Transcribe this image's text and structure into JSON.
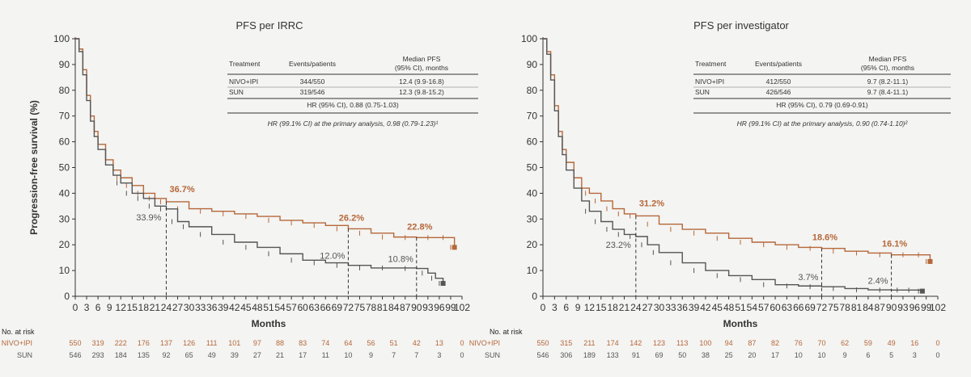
{
  "colors": {
    "nivo": "#b5673a",
    "sun": "#555555",
    "axis": "#333333"
  },
  "chart_data": [
    {
      "type": "line",
      "title": "PFS per IRRC",
      "ylabel": "Progression-free survival (%)",
      "xlabel": "Months",
      "xlim": [
        0,
        102
      ],
      "ylim": [
        0,
        100
      ],
      "xticks": [
        "0",
        "3",
        "6",
        "9",
        "12",
        "15",
        "18",
        "21",
        "24",
        "27",
        "30",
        "33",
        "36",
        "39",
        "42",
        "45",
        "48",
        "51",
        "54",
        "57",
        "60",
        "63",
        "66",
        "69",
        "72",
        "75",
        "78",
        "81",
        "84",
        "87",
        "90",
        "93",
        "96",
        "99",
        "102"
      ],
      "yticks": [
        "0",
        "10",
        "20",
        "30",
        "40",
        "50",
        "60",
        "70",
        "80",
        "90",
        "100"
      ],
      "series": [
        {
          "name": "NIVO+IPI",
          "color": "#b5673a",
          "x": [
            0,
            1,
            2,
            3,
            4,
            5,
            6,
            8,
            10,
            12,
            15,
            18,
            21,
            24,
            30,
            36,
            42,
            48,
            54,
            60,
            66,
            72,
            78,
            84,
            90,
            96,
            98,
            100
          ],
          "y": [
            100,
            96,
            88,
            78,
            70,
            64,
            59,
            53,
            49,
            46,
            43,
            40,
            38,
            36.7,
            34,
            33,
            32,
            31,
            29.5,
            28.5,
            27.5,
            26.2,
            24.5,
            23,
            22.8,
            22.8,
            22.8,
            19
          ]
        },
        {
          "name": "SUN",
          "color": "#555555",
          "x": [
            0,
            1,
            2,
            3,
            4,
            5,
            6,
            8,
            10,
            12,
            15,
            18,
            21,
            24,
            27,
            30,
            36,
            42,
            48,
            54,
            60,
            66,
            72,
            78,
            84,
            90,
            93,
            95,
            97
          ],
          "y": [
            100,
            95,
            86,
            76,
            68,
            62,
            57,
            51,
            47,
            44,
            40,
            38,
            35,
            33.9,
            29,
            27,
            24,
            21,
            19,
            16.5,
            14,
            13,
            12,
            11,
            11,
            10.8,
            9,
            7,
            5
          ]
        }
      ],
      "annotations": [
        {
          "x": 24,
          "label": "36.7%",
          "series": "NIVO+IPI"
        },
        {
          "x": 24,
          "label": "33.9%",
          "series": "SUN"
        },
        {
          "x": 72,
          "label": "26.2%",
          "series": "NIVO+IPI"
        },
        {
          "x": 72,
          "label": "12.0%",
          "series": "SUN"
        },
        {
          "x": 90,
          "label": "22.8%",
          "series": "NIVO+IPI"
        },
        {
          "x": 90,
          "label": "10.8%",
          "series": "SUN"
        }
      ],
      "table": {
        "headers": [
          "Treatment",
          "Events/patients",
          "Median PFS",
          "(95% CI), months"
        ],
        "rows": [
          {
            "treatment": "NIVO+IPI",
            "events": "344/550",
            "median": "12.4 (9.9-16.8)"
          },
          {
            "treatment": "SUN",
            "events": "319/546",
            "median": "12.3 (9.8-15.2)"
          }
        ],
        "hr": "HR (95% CI), 0.88 (0.75-1.03)",
        "note": "HR (99.1% CI) at the primary analysis, 0.98 (0.79-1.23)¹"
      },
      "risk": {
        "label": "No. at risk",
        "rows": [
          {
            "name": "NIVO+IPI",
            "values": [
              "550",
              "319",
              "222",
              "176",
              "137",
              "126",
              "111",
              "101",
              "97",
              "88",
              "83",
              "74",
              "64",
              "56",
              "51",
              "42",
              "13",
              "0"
            ]
          },
          {
            "name": "SUN",
            "values": [
              "546",
              "293",
              "184",
              "135",
              "92",
              "65",
              "49",
              "39",
              "27",
              "21",
              "17",
              "11",
              "10",
              "9",
              "7",
              "7",
              "3",
              "0"
            ]
          }
        ]
      }
    },
    {
      "type": "line",
      "title": "PFS per investigator",
      "ylabel": "",
      "xlabel": "Months",
      "xlim": [
        0,
        102
      ],
      "ylim": [
        0,
        100
      ],
      "xticks": [
        "0",
        "3",
        "6",
        "9",
        "12",
        "15",
        "18",
        "21",
        "24",
        "27",
        "30",
        "33",
        "36",
        "39",
        "42",
        "45",
        "48",
        "51",
        "54",
        "57",
        "60",
        "63",
        "66",
        "69",
        "72",
        "75",
        "78",
        "81",
        "84",
        "87",
        "90",
        "93",
        "96",
        "99",
        "102"
      ],
      "yticks": [
        "0",
        "10",
        "20",
        "30",
        "40",
        "50",
        "60",
        "70",
        "80",
        "90",
        "100"
      ],
      "series": [
        {
          "name": "NIVO+IPI",
          "color": "#b5673a",
          "x": [
            0,
            1,
            2,
            3,
            4,
            5,
            6,
            8,
            10,
            12,
            15,
            18,
            21,
            24,
            30,
            36,
            42,
            48,
            54,
            60,
            66,
            72,
            78,
            84,
            90,
            96,
            98,
            100
          ],
          "y": [
            100,
            95,
            86,
            74,
            64,
            57,
            52,
            46,
            42,
            40,
            37,
            34,
            32,
            31.2,
            28,
            26,
            24.5,
            22.5,
            21,
            20,
            19,
            18.6,
            17.5,
            16.8,
            16.1,
            16.1,
            16.1,
            13.5
          ]
        },
        {
          "name": "SUN",
          "color": "#555555",
          "x": [
            0,
            1,
            2,
            3,
            4,
            5,
            6,
            8,
            10,
            12,
            15,
            18,
            21,
            24,
            27,
            30,
            36,
            42,
            48,
            54,
            60,
            66,
            72,
            78,
            84,
            90,
            93,
            96,
            98
          ],
          "y": [
            100,
            94,
            84,
            72,
            62,
            55,
            49,
            42,
            37,
            33,
            29,
            26,
            24,
            23.2,
            20,
            17,
            13,
            10,
            8,
            6.5,
            4.5,
            4,
            3.7,
            3,
            2.5,
            2.4,
            2.4,
            2.4,
            2
          ]
        }
      ],
      "annotations": [
        {
          "x": 24,
          "label": "31.2%",
          "series": "NIVO+IPI"
        },
        {
          "x": 24,
          "label": "23.2%",
          "series": "SUN"
        },
        {
          "x": 72,
          "label": "18.6%",
          "series": "NIVO+IPI"
        },
        {
          "x": 72,
          "label": "3.7%",
          "series": "SUN"
        },
        {
          "x": 90,
          "label": "16.1%",
          "series": "NIVO+IPI"
        },
        {
          "x": 90,
          "label": "2.4%",
          "series": "SUN"
        }
      ],
      "table": {
        "headers": [
          "Treatment",
          "Events/patients",
          "Median PFS",
          "(95% CI), months"
        ],
        "rows": [
          {
            "treatment": "NIVO+IPI",
            "events": "412/550",
            "median": "9.7 (8.2-11.1)"
          },
          {
            "treatment": "SUN",
            "events": "426/546",
            "median": "9.7 (8.4-11.1)"
          }
        ],
        "hr": "HR (95% CI), 0.79 (0.69-0.91)",
        "note": "HR (99.1% CI) at the primary analysis, 0.90 (0.74-1.10)²"
      },
      "risk": {
        "label": "No. at risk",
        "rows": [
          {
            "name": "NIVO+IPI",
            "values": [
              "550",
              "315",
              "211",
              "174",
              "142",
              "123",
              "113",
              "100",
              "94",
              "87",
              "82",
              "76",
              "70",
              "62",
              "59",
              "49",
              "16",
              "0"
            ]
          },
          {
            "name": "SUN",
            "values": [
              "546",
              "306",
              "189",
              "133",
              "91",
              "69",
              "50",
              "38",
              "25",
              "20",
              "17",
              "10",
              "10",
              "9",
              "6",
              "5",
              "3",
              "0"
            ]
          }
        ]
      }
    }
  ]
}
